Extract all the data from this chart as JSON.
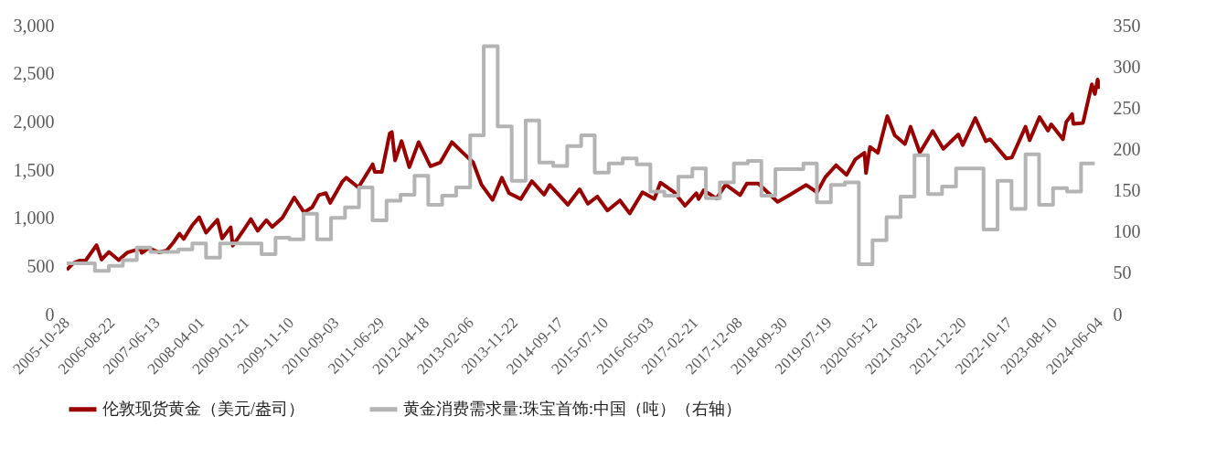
{
  "chart_data": {
    "type": "line",
    "xlim": [
      "2005-10-28",
      "2024-06-04"
    ],
    "xticks": [
      "2005-10-28",
      "2006-08-22",
      "2007-06-13",
      "2008-04-01",
      "2009-01-21",
      "2009-11-10",
      "2010-09-03",
      "2011-06-29",
      "2012-04-18",
      "2013-02-06",
      "2013-11-22",
      "2014-09-17",
      "2015-07-10",
      "2016-05-03",
      "2017-02-21",
      "2017-12-08",
      "2018-09-30",
      "2019-07-19",
      "2020-05-12",
      "2021-03-02",
      "2021-12-20",
      "2022-10-17",
      "2023-08-10",
      "2024-06-04"
    ],
    "ylim": [
      0,
      3000
    ],
    "yticks": [
      0,
      500,
      {
        "value": 1000,
        "label": "1,000"
      },
      {
        "value": 1500,
        "label": "1,500"
      },
      {
        "value": 2000,
        "label": "2,000"
      },
      {
        "value": 2500,
        "label": "2,500"
      },
      {
        "value": 3000,
        "label": "3,000"
      }
    ],
    "y2lim": [
      0,
      350
    ],
    "y2ticks": [
      0,
      50,
      100,
      150,
      200,
      250,
      300,
      350
    ],
    "legend": "bottom",
    "series": [
      {
        "name": "伦敦现货黄金（美元/盎司）",
        "color": "#990000",
        "x": [
          "2005-10-28",
          "2005-12-12",
          "2006-01-20",
          "2006-03-01",
          "2006-05-12",
          "2006-06-14",
          "2006-08-01",
          "2006-10-05",
          "2006-12-01",
          "2007-02-26",
          "2007-03-05",
          "2007-04-20",
          "2007-06-28",
          "2007-08-16",
          "2007-09-28",
          "2007-11-08",
          "2007-12-06",
          "2008-01-31",
          "2008-03-17",
          "2008-05-01",
          "2008-07-15",
          "2008-08-15",
          "2008-10-10",
          "2008-10-24",
          "2008-12-31",
          "2009-02-20",
          "2009-04-06",
          "2009-06-02",
          "2009-07-10",
          "2009-09-15",
          "2009-12-02",
          "2010-02-05",
          "2010-03-31",
          "2010-05-13",
          "2010-06-28",
          "2010-07-27",
          "2010-10-14",
          "2010-11-09",
          "2011-01-28",
          "2011-05-02",
          "2011-05-16",
          "2011-07-01",
          "2011-08-22",
          "2011-09-05",
          "2011-09-26",
          "2011-11-08",
          "2011-12-29",
          "2012-02-28",
          "2012-05-16",
          "2012-07-20",
          "2012-10-04",
          "2012-12-28",
          "2013-02-20",
          "2013-04-16",
          "2013-06-28",
          "2013-08-28",
          "2013-10-15",
          "2013-12-31",
          "2014-03-14",
          "2014-06-02",
          "2014-07-10",
          "2014-11-05",
          "2015-01-22",
          "2015-03-17",
          "2015-05-18",
          "2015-07-24",
          "2015-10-14",
          "2015-12-17",
          "2016-03-10",
          "2016-05-27",
          "2016-07-06",
          "2016-10-04",
          "2016-12-15",
          "2017-02-27",
          "2017-03-15",
          "2017-04-17",
          "2017-07-10",
          "2017-09-08",
          "2017-12-12",
          "2018-01-25",
          "2018-04-11",
          "2018-08-16",
          "2018-10-26",
          "2019-02-20",
          "2019-05-02",
          "2019-06-25",
          "2019-09-04",
          "2019-11-12",
          "2020-01-08",
          "2020-03-09",
          "2020-03-19",
          "2020-04-14",
          "2020-06-05",
          "2020-08-06",
          "2020-09-24",
          "2020-11-30",
          "2021-01-06",
          "2021-03-08",
          "2021-06-01",
          "2021-08-09",
          "2021-11-16",
          "2021-12-15",
          "2022-03-08",
          "2022-05-16",
          "2022-06-13",
          "2022-09-28",
          "2022-11-03",
          "2023-02-01",
          "2023-02-28",
          "2023-05-04",
          "2023-06-29",
          "2023-07-20",
          "2023-10-05",
          "2023-10-27",
          "2023-12-04",
          "2023-12-13",
          "2024-02-14",
          "2024-04-12",
          "2024-05-02",
          "2024-05-20",
          "2024-06-04"
        ],
        "values": [
          465,
          535,
          560,
          560,
          720,
          570,
          650,
          565,
          645,
          685,
          640,
          690,
          645,
          665,
          745,
          840,
          785,
          925,
          1010,
          850,
          985,
          790,
          905,
          715,
          870,
          990,
          870,
          980,
          910,
          1005,
          1215,
          1060,
          1115,
          1240,
          1260,
          1160,
          1380,
          1420,
          1320,
          1560,
          1480,
          1480,
          1880,
          1895,
          1600,
          1800,
          1530,
          1790,
          1540,
          1580,
          1790,
          1660,
          1580,
          1350,
          1190,
          1420,
          1260,
          1200,
          1385,
          1245,
          1345,
          1140,
          1300,
          1150,
          1225,
          1080,
          1185,
          1050,
          1270,
          1200,
          1370,
          1270,
          1130,
          1260,
          1200,
          1290,
          1205,
          1350,
          1240,
          1360,
          1360,
          1170,
          1235,
          1345,
          1270,
          1425,
          1550,
          1450,
          1610,
          1680,
          1470,
          1740,
          1680,
          2060,
          1860,
          1770,
          1950,
          1680,
          1905,
          1720,
          1870,
          1760,
          2040,
          1800,
          1820,
          1620,
          1630,
          1950,
          1810,
          2050,
          1910,
          1975,
          1820,
          2000,
          2080,
          1980,
          1990,
          2390,
          2290,
          2440,
          2345
        ]
      },
      {
        "name": "黄金消费需求量:珠宝首饰:中国（吨）（右轴）",
        "type": "step",
        "axis": "y2",
        "color": "#b4b4b4",
        "x": [
          "2005-10-28",
          "2006-05-01",
          "2006-08-01",
          "2006-11-01",
          "2007-02-01",
          "2007-05-01",
          "2007-08-01",
          "2007-11-01",
          "2008-02-01",
          "2008-05-01",
          "2008-08-01",
          "2008-11-01",
          "2009-02-01",
          "2009-05-01",
          "2009-08-01",
          "2009-11-01",
          "2010-02-01",
          "2010-05-01",
          "2010-08-01",
          "2010-11-01",
          "2011-02-01",
          "2011-05-01",
          "2011-08-01",
          "2011-11-01",
          "2012-02-01",
          "2012-05-01",
          "2012-08-01",
          "2012-11-01",
          "2013-02-01",
          "2013-05-01",
          "2013-08-01",
          "2013-11-01",
          "2014-02-01",
          "2014-05-01",
          "2014-08-01",
          "2014-11-01",
          "2015-02-01",
          "2015-05-01",
          "2015-08-01",
          "2015-11-01",
          "2016-02-01",
          "2016-05-01",
          "2016-08-01",
          "2016-11-01",
          "2017-02-01",
          "2017-05-01",
          "2017-08-01",
          "2017-11-01",
          "2018-02-01",
          "2018-05-01",
          "2018-08-01",
          "2018-11-01",
          "2019-02-01",
          "2019-05-01",
          "2019-08-01",
          "2019-11-01",
          "2020-02-01",
          "2020-05-01",
          "2020-08-01",
          "2020-11-01",
          "2021-02-01",
          "2021-05-01",
          "2021-08-01",
          "2021-11-01",
          "2022-02-01",
          "2022-05-01",
          "2022-08-01",
          "2022-11-01",
          "2023-02-01",
          "2023-05-01",
          "2023-08-01",
          "2023-11-01",
          "2024-02-01",
          "2024-05-01"
        ],
        "values": [
          62,
          53,
          59,
          66,
          81,
          76,
          76,
          79,
          86,
          69,
          86,
          86,
          86,
          73,
          93,
          91,
          122,
          91,
          117,
          130,
          154,
          114,
          138,
          145,
          168,
          133,
          144,
          154,
          217,
          325,
          228,
          162,
          235,
          184,
          180,
          204,
          217,
          172,
          183,
          189,
          182,
          149,
          144,
          167,
          177,
          141,
          160,
          183,
          186,
          144,
          176,
          176,
          183,
          136,
          157,
          160,
          61,
          90,
          118,
          143,
          193,
          146,
          155,
          177,
          177,
          103,
          162,
          128,
          194,
          133,
          153,
          149,
          183,
          183
        ]
      }
    ]
  }
}
